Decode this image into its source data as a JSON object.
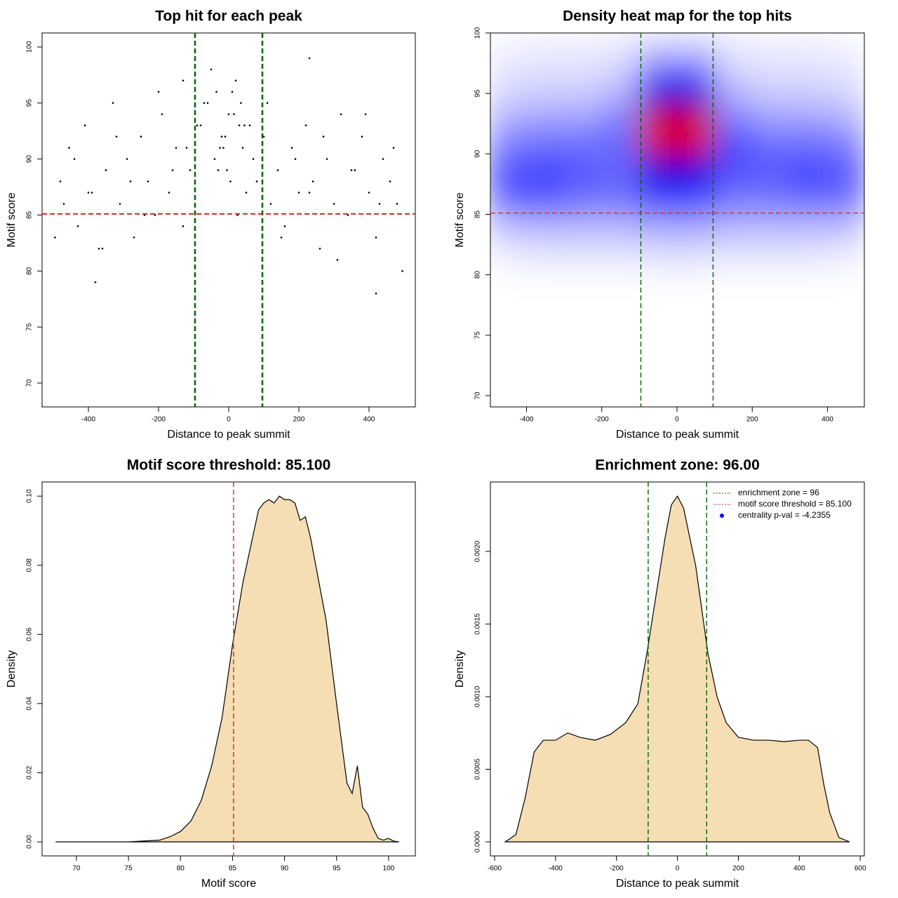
{
  "chart_data": [
    {
      "type": "scatter",
      "title": "Top hit for each peak",
      "x_label": "Distance to peak summit",
      "y_label": "Motif score",
      "x": [
        -480,
        -455,
        -430,
        -410,
        -390,
        -370,
        -350,
        -330,
        -310,
        -290,
        -270,
        -250,
        -230,
        -210,
        -190,
        -170,
        -150,
        -130,
        -110,
        -90,
        -470,
        -440,
        -400,
        -360,
        -320,
        -280,
        -240,
        -200,
        -160,
        -120,
        -80,
        -60,
        -40,
        -20,
        0,
        20,
        40,
        60,
        80,
        -50,
        -30,
        -10,
        10,
        30,
        50,
        -70,
        -15,
        15,
        70,
        25,
        100,
        120,
        140,
        160,
        180,
        200,
        220,
        240,
        260,
        280,
        300,
        320,
        340,
        360,
        380,
        400,
        420,
        440,
        460,
        480,
        110,
        150,
        190,
        230,
        270,
        310,
        350,
        390,
        430,
        470,
        -35,
        5,
        45,
        -25,
        35,
        -5,
        -495,
        495,
        -380,
        420,
        -130,
        230
      ],
      "y": [
        88,
        91,
        84,
        93,
        87,
        82,
        89,
        95,
        86,
        90,
        83,
        92,
        88,
        85,
        94,
        87,
        91,
        84,
        89,
        93,
        86,
        90,
        87,
        82,
        92,
        88,
        85,
        96,
        89,
        91,
        93,
        95,
        90,
        92,
        94,
        97,
        91,
        93,
        88,
        98,
        89,
        92,
        96,
        93,
        87,
        95,
        91,
        94,
        90,
        85,
        92,
        86,
        89,
        84,
        91,
        87,
        93,
        88,
        82,
        90,
        86,
        94,
        85,
        89,
        92,
        87,
        83,
        90,
        88,
        86,
        95,
        83,
        90,
        87,
        92,
        81,
        89,
        94,
        86,
        91,
        96,
        88,
        93,
        91,
        95,
        89,
        83,
        80,
        79,
        78,
        97,
        99
      ],
      "color": "#000000",
      "xlim": [
        -532,
        532
      ],
      "ylim": [
        67.87,
        101.25
      ],
      "xticks": [
        -400,
        -200,
        0,
        200,
        400
      ],
      "yticks": [
        70,
        75,
        80,
        85,
        90,
        95,
        100
      ],
      "vlines": [
        -96,
        96
      ],
      "vline_color": "#006400",
      "hline": 85.1,
      "hline_color": "#dd2222"
    },
    {
      "type": "heatmap",
      "title": "Density heat map for the top hits",
      "x_label": "Distance to peak summit",
      "y_label": "Motif score",
      "x": [
        -450,
        -350,
        -250,
        -150,
        -50,
        50,
        150,
        250,
        350,
        450
      ],
      "y": [
        99,
        97,
        95,
        93,
        91,
        89,
        87,
        85,
        83,
        81
      ],
      "z": [
        [
          0.02,
          0.03,
          0.03,
          0.04,
          0.08,
          0.08,
          0.04,
          0.03,
          0.03,
          0.02
        ],
        [
          0.05,
          0.06,
          0.06,
          0.08,
          0.3,
          0.3,
          0.08,
          0.06,
          0.06,
          0.05
        ],
        [
          0.08,
          0.1,
          0.1,
          0.15,
          0.55,
          0.55,
          0.15,
          0.1,
          0.1,
          0.08
        ],
        [
          0.15,
          0.18,
          0.18,
          0.25,
          0.9,
          0.9,
          0.25,
          0.18,
          0.18,
          0.15
        ],
        [
          0.25,
          0.28,
          0.28,
          0.3,
          0.95,
          0.95,
          0.35,
          0.28,
          0.28,
          0.25
        ],
        [
          0.32,
          0.35,
          0.32,
          0.3,
          0.6,
          0.6,
          0.35,
          0.32,
          0.35,
          0.32
        ],
        [
          0.35,
          0.38,
          0.32,
          0.3,
          0.45,
          0.45,
          0.3,
          0.3,
          0.35,
          0.32
        ],
        [
          0.2,
          0.22,
          0.2,
          0.2,
          0.25,
          0.25,
          0.2,
          0.2,
          0.2,
          0.2
        ],
        [
          0.08,
          0.1,
          0.1,
          0.1,
          0.12,
          0.12,
          0.1,
          0.1,
          0.1,
          0.08
        ],
        [
          0.02,
          0.03,
          0.03,
          0.03,
          0.04,
          0.04,
          0.03,
          0.03,
          0.03,
          0.02
        ]
      ],
      "xlim": [
        -496,
        498
      ],
      "ylim": [
        69.07,
        100
      ],
      "xticks": [
        -400,
        -200,
        0,
        200,
        400
      ],
      "yticks": [
        70,
        75,
        80,
        85,
        90,
        95,
        100
      ],
      "vlines": [
        -96,
        96
      ],
      "vline_color": "#006400",
      "hline": 85.1,
      "hline_color": "#dd2222"
    },
    {
      "type": "density",
      "title": "Motif score threshold: 85.100",
      "x_label": "Motif score",
      "y_label": "Density",
      "x": [
        68,
        75,
        78,
        79,
        80,
        81,
        82,
        83,
        84,
        85,
        86,
        87,
        87.5,
        88,
        88.5,
        89,
        89.5,
        90,
        90.5,
        91,
        91.5,
        92,
        92.5,
        93,
        94,
        95,
        96,
        96.5,
        97,
        97.5,
        98,
        98.5,
        99,
        99.5,
        100,
        100.5,
        101
      ],
      "y": [
        0,
        0,
        0.0005,
        0.0015,
        0.003,
        0.006,
        0.012,
        0.022,
        0.036,
        0.057,
        0.075,
        0.089,
        0.096,
        0.098,
        0.099,
        0.098,
        0.1,
        0.099,
        0.099,
        0.098,
        0.093,
        0.094,
        0.088,
        0.08,
        0.064,
        0.04,
        0.017,
        0.014,
        0.022,
        0.01,
        0.008,
        0.004,
        0.001,
        0.0005,
        0.001,
        0.0002,
        0
      ],
      "color": "#f5deb3",
      "xlim": [
        66.7,
        102.57
      ],
      "ylim": [
        -0.00406,
        0.1041
      ],
      "xticks": [
        70,
        75,
        80,
        85,
        90,
        95,
        100
      ],
      "yticks": [
        {
          "value": 0,
          "label": "0.00"
        },
        {
          "value": 0.02,
          "label": "0.02"
        },
        {
          "value": 0.04,
          "label": "0.04"
        },
        {
          "value": 0.06,
          "label": "0.06"
        },
        {
          "value": 0.08,
          "label": "0.08"
        },
        {
          "value": 0.1,
          "label": "0.10"
        }
      ],
      "vlines": [
        85.1
      ],
      "vline_color": "#dd2222"
    },
    {
      "type": "density",
      "title": "Enrichment zone: 96.00",
      "x_label": "Distance to peak summit",
      "y_label": "Density",
      "x": [
        -565,
        -530,
        -500,
        -470,
        -440,
        -400,
        -360,
        -320,
        -270,
        -220,
        -170,
        -130,
        -100,
        -70,
        -40,
        -20,
        0,
        20,
        40,
        60,
        80,
        100,
        130,
        160,
        200,
        250,
        300,
        350,
        400,
        430,
        460,
        480,
        500,
        530,
        565
      ],
      "y": [
        0,
        5e-05,
        0.0003,
        0.00062,
        0.0007,
        0.0007,
        0.00075,
        0.00072,
        0.0007,
        0.00074,
        0.00082,
        0.00095,
        0.0013,
        0.0017,
        0.0021,
        0.00232,
        0.00238,
        0.0023,
        0.0021,
        0.0019,
        0.0016,
        0.0013,
        0.001,
        0.00082,
        0.00072,
        0.0007,
        0.0007,
        0.00069,
        0.0007,
        0.0007,
        0.00065,
        0.0004,
        0.0002,
        3e-05,
        0
      ],
      "color": "#f5deb3",
      "xlim": [
        -613.8,
        613.4
      ],
      "ylim": [
        -9.66e-05,
        0.002478
      ],
      "xticks": [
        -600,
        -400,
        -200,
        0,
        200,
        400,
        600
      ],
      "yticks": [
        {
          "value": 0,
          "label": "0.0000"
        },
        {
          "value": 0.0005,
          "label": "0.0005"
        },
        {
          "value": 0.001,
          "label": "0.0010"
        },
        {
          "value": 0.0015,
          "label": "0.0015"
        },
        {
          "value": 0.002,
          "label": "0.0020"
        }
      ],
      "vlines": [
        -96,
        96
      ],
      "vline_color": "#006400",
      "legend": [
        {
          "label": "enrichment zone = 96",
          "color": "#006400",
          "style": "line"
        },
        {
          "label": "motif score threshold = 85.100",
          "color": "#dd2222",
          "style": "line"
        },
        {
          "label": "centrality p-val = -4.2355",
          "color": "#0000ff",
          "style": "point"
        }
      ]
    }
  ]
}
